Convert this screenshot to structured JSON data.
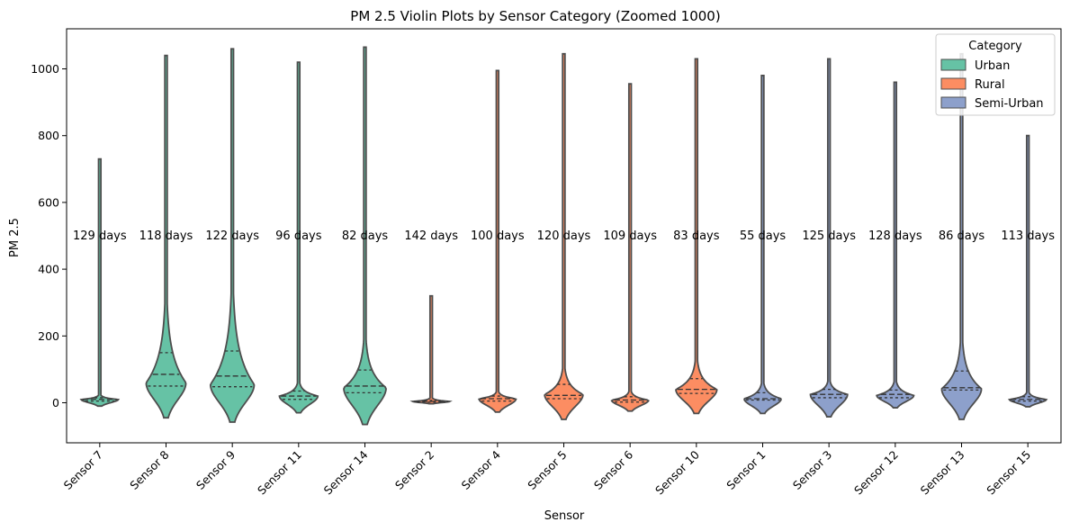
{
  "chart_data": {
    "type": "violin",
    "title": "PM 2.5 Violin Plots by Sensor Category (Zoomed 1000)",
    "xlabel": "Sensor",
    "ylabel": "PM 2.5",
    "ylim": [
      -120,
      1120
    ],
    "yticks": [
      0,
      200,
      400,
      600,
      800,
      1000
    ],
    "grid": false,
    "legend": {
      "title": "Category",
      "placement": "top-right",
      "entries": [
        {
          "name": "Urban",
          "color": "#66c2a5"
        },
        {
          "name": "Rural",
          "color": "#fc8d62"
        },
        {
          "name": "Semi-Urban",
          "color": "#8da0cb"
        }
      ]
    },
    "annotation_y": 500,
    "sensors": [
      {
        "name": "Sensor 7",
        "category": "Urban",
        "annotation": "129 days",
        "min": -10,
        "max": 730,
        "q1": 5,
        "median": 10,
        "q3": 15,
        "mode": 10,
        "width": 0.28
      },
      {
        "name": "Sensor 8",
        "category": "Urban",
        "annotation": "118 days",
        "min": -45,
        "max": 1040,
        "q1": 50,
        "median": 85,
        "q3": 150,
        "mode": 60,
        "width": 0.3
      },
      {
        "name": "Sensor 9",
        "category": "Urban",
        "annotation": "122 days",
        "min": -58,
        "max": 1060,
        "q1": 48,
        "median": 80,
        "q3": 155,
        "mode": 55,
        "width": 0.33
      },
      {
        "name": "Sensor 11",
        "category": "Urban",
        "annotation": "96 days",
        "min": -30,
        "max": 1020,
        "q1": 10,
        "median": 20,
        "q3": 35,
        "mode": 20,
        "width": 0.29
      },
      {
        "name": "Sensor 14",
        "category": "Urban",
        "annotation": "82 days",
        "min": -65,
        "max": 1065,
        "q1": 30,
        "median": 50,
        "q3": 98,
        "mode": 45,
        "width": 0.32
      },
      {
        "name": "Sensor 2",
        "category": "Rural",
        "annotation": "142 days",
        "min": -3,
        "max": 320,
        "q1": 2,
        "median": 4,
        "q3": 7,
        "mode": 4,
        "width": 0.28
      },
      {
        "name": "Sensor 4",
        "category": "Rural",
        "annotation": "100 days",
        "min": -28,
        "max": 995,
        "q1": 5,
        "median": 12,
        "q3": 20,
        "mode": 12,
        "width": 0.28
      },
      {
        "name": "Sensor 5",
        "category": "Rural",
        "annotation": "120 days",
        "min": -50,
        "max": 1045,
        "q1": 12,
        "median": 22,
        "q3": 55,
        "mode": 25,
        "width": 0.29
      },
      {
        "name": "Sensor 6",
        "category": "Rural",
        "annotation": "109 days",
        "min": -25,
        "max": 955,
        "q1": 2,
        "median": 8,
        "q3": 18,
        "mode": 8,
        "width": 0.28
      },
      {
        "name": "Sensor 10",
        "category": "Rural",
        "annotation": "83 days",
        "min": -32,
        "max": 1030,
        "q1": 28,
        "median": 40,
        "q3": 72,
        "mode": 40,
        "width": 0.31
      },
      {
        "name": "Sensor 1",
        "category": "Semi-Urban",
        "annotation": "55 days",
        "min": -32,
        "max": 980,
        "q1": 8,
        "median": 12,
        "q3": 30,
        "mode": 12,
        "width": 0.28
      },
      {
        "name": "Sensor 3",
        "category": "Semi-Urban",
        "annotation": "125 days",
        "min": -42,
        "max": 1030,
        "q1": 15,
        "median": 25,
        "q3": 40,
        "mode": 25,
        "width": 0.28
      },
      {
        "name": "Sensor 12",
        "category": "Semi-Urban",
        "annotation": "128 days",
        "min": -15,
        "max": 960,
        "q1": 15,
        "median": 25,
        "q3": 38,
        "mode": 22,
        "width": 0.28
      },
      {
        "name": "Sensor 13",
        "category": "Semi-Urban",
        "annotation": "86 days",
        "min": -50,
        "max": 1045,
        "q1": 38,
        "median": 45,
        "q3": 95,
        "mode": 42,
        "width": 0.3
      },
      {
        "name": "Sensor 15",
        "category": "Semi-Urban",
        "annotation": "113 days",
        "min": -12,
        "max": 800,
        "q1": 5,
        "median": 10,
        "q3": 18,
        "mode": 10,
        "width": 0.28
      }
    ]
  }
}
